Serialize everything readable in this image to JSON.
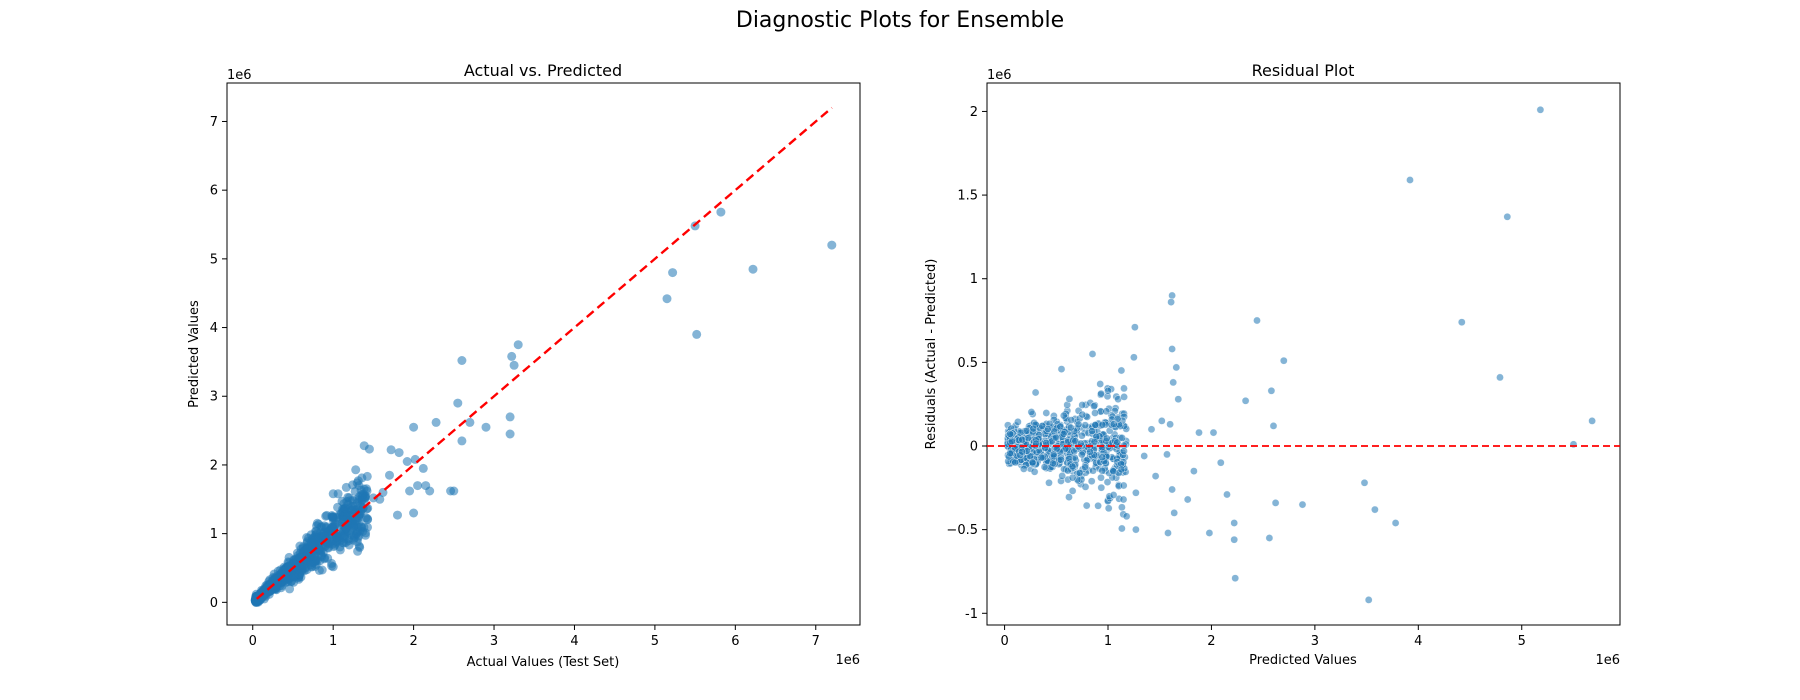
{
  "suptitle": "Diagnostic Plots for Ensemble",
  "chart_data": [
    {
      "type": "scatter",
      "title": "Actual vs. Predicted",
      "xlabel": "Actual Values (Test Set)",
      "ylabel": "Predicted Values",
      "x_offset_label": "1e6",
      "y_offset_label": "1e6",
      "xlim": [
        -320000,
        7550000
      ],
      "ylim": [
        -330000,
        7560000
      ],
      "xticks": [
        0,
        1,
        2,
        3,
        4,
        5,
        6,
        7
      ],
      "yticks": [
        0,
        1,
        2,
        3,
        4,
        5,
        6,
        7
      ],
      "tick_scale": 1000000,
      "grid": false,
      "point_color": "#1f77b4",
      "reference_line": {
        "style": "dashed",
        "color": "#ff0000",
        "from": [
          50000,
          50000
        ],
        "to": [
          7200000,
          7200000
        ]
      },
      "outliers": [
        [
          5500000,
          5480000
        ],
        [
          5820000,
          5680000
        ],
        [
          7200000,
          5200000
        ],
        [
          5220000,
          4800000
        ],
        [
          6220000,
          4850000
        ],
        [
          5150000,
          4420000
        ],
        [
          5520000,
          3900000
        ],
        [
          3300000,
          3750000
        ],
        [
          3220000,
          3580000
        ],
        [
          3250000,
          3450000
        ],
        [
          2600000,
          3520000
        ],
        [
          3200000,
          2700000
        ],
        [
          3200000,
          2450000
        ],
        [
          2550000,
          2900000
        ],
        [
          2280000,
          2620000
        ],
        [
          2700000,
          2620000
        ],
        [
          2900000,
          2550000
        ],
        [
          2600000,
          2350000
        ],
        [
          2000000,
          2550000
        ],
        [
          1450000,
          2230000
        ],
        [
          1720000,
          2220000
        ],
        [
          1820000,
          2180000
        ],
        [
          1920000,
          2050000
        ],
        [
          2020000,
          2080000
        ],
        [
          2120000,
          1950000
        ],
        [
          2050000,
          1700000
        ],
        [
          2150000,
          1700000
        ],
        [
          2200000,
          1620000
        ],
        [
          2460000,
          1620000
        ],
        [
          2500000,
          1620000
        ],
        [
          1950000,
          1620000
        ],
        [
          1620000,
          1600000
        ],
        [
          1420000,
          1620000
        ],
        [
          1500000,
          1520000
        ],
        [
          1800000,
          1270000
        ],
        [
          2000000,
          1300000
        ],
        [
          1330000,
          800000
        ],
        [
          980000,
          530000
        ],
        [
          1000000,
          1580000
        ],
        [
          1320000,
          1700000
        ],
        [
          1700000,
          1850000
        ],
        [
          1580000,
          1500000
        ],
        [
          1300000,
          1450000
        ]
      ],
      "cluster": {
        "n": 700,
        "x_max": 1400000,
        "rel_spread": 0.18,
        "seed": 7
      }
    },
    {
      "type": "scatter",
      "title": "Residual Plot",
      "xlabel": "Predicted Values",
      "ylabel": "Residuals (Actual - Predicted)",
      "x_offset_label": "1e6",
      "y_offset_label": "1e6",
      "xlim": [
        -170000,
        5950000
      ],
      "ylim": [
        -1070000,
        2170000
      ],
      "xticks": [
        0,
        1,
        2,
        3,
        4,
        5
      ],
      "yticks": [
        -1.0,
        -0.5,
        0.0,
        0.5,
        1.0,
        1.5,
        2.0
      ],
      "tick_scale": 1000000,
      "grid": false,
      "point_color": "#1f77b4",
      "reference_line": {
        "style": "dashed",
        "color": "#ff0000",
        "y": 0
      },
      "outliers": [
        [
          5180000,
          2010000
        ],
        [
          3920000,
          1590000
        ],
        [
          4860000,
          1370000
        ],
        [
          4420000,
          740000
        ],
        [
          4790000,
          410000
        ],
        [
          5680000,
          150000
        ],
        [
          5500000,
          10000
        ],
        [
          3480000,
          -220000
        ],
        [
          3580000,
          -380000
        ],
        [
          3780000,
          -460000
        ],
        [
          3520000,
          -920000
        ],
        [
          2580000,
          330000
        ],
        [
          2600000,
          120000
        ],
        [
          2700000,
          510000
        ],
        [
          2440000,
          750000
        ],
        [
          2330000,
          270000
        ],
        [
          2620000,
          -340000
        ],
        [
          2880000,
          -350000
        ],
        [
          2560000,
          -550000
        ],
        [
          2220000,
          -460000
        ],
        [
          2220000,
          -560000
        ],
        [
          2230000,
          -790000
        ],
        [
          2150000,
          -290000
        ],
        [
          2090000,
          -100000
        ],
        [
          1980000,
          -520000
        ],
        [
          1620000,
          900000
        ],
        [
          1610000,
          860000
        ],
        [
          1620000,
          580000
        ],
        [
          1660000,
          470000
        ],
        [
          1630000,
          380000
        ],
        [
          1600000,
          130000
        ],
        [
          1580000,
          -520000
        ],
        [
          1640000,
          -400000
        ],
        [
          1620000,
          -260000
        ],
        [
          1260000,
          710000
        ],
        [
          1250000,
          530000
        ],
        [
          1030000,
          340000
        ],
        [
          1000000,
          330000
        ],
        [
          850000,
          550000
        ],
        [
          1270000,
          -280000
        ],
        [
          1270000,
          -500000
        ],
        [
          1150000,
          -320000
        ],
        [
          1180000,
          -420000
        ],
        [
          1880000,
          80000
        ],
        [
          2020000,
          80000
        ],
        [
          1830000,
          -150000
        ],
        [
          1770000,
          -320000
        ],
        [
          1680000,
          280000
        ],
        [
          1520000,
          150000
        ],
        [
          550000,
          460000
        ],
        [
          300000,
          320000
        ],
        [
          1570000,
          -50000
        ],
        [
          1420000,
          100000
        ],
        [
          1350000,
          -60000
        ],
        [
          1460000,
          -180000
        ]
      ],
      "cluster": {
        "n": 700,
        "x_max": 1150000,
        "rel_spread": 0.2,
        "seed": 13
      }
    }
  ]
}
